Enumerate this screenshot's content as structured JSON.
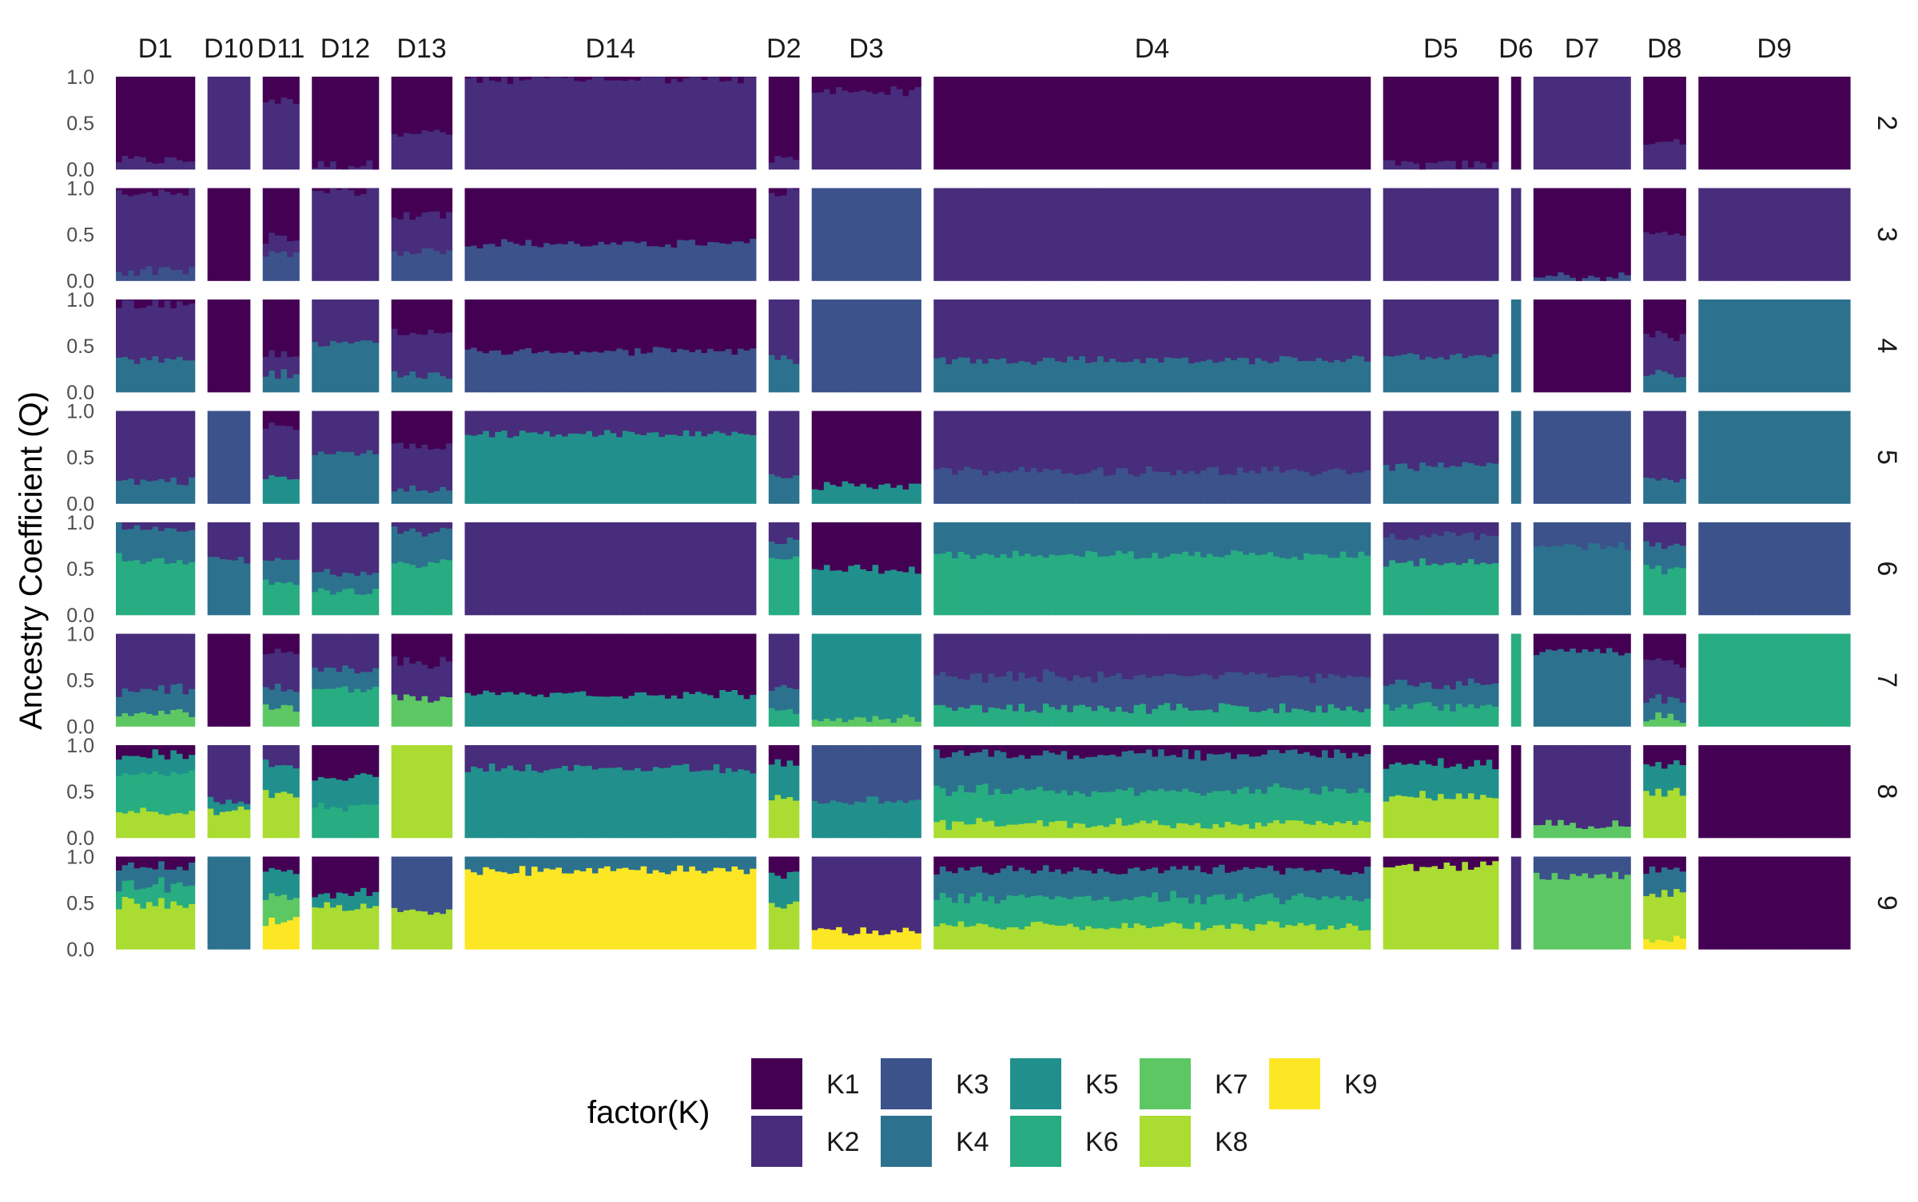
{
  "chart_data": {
    "type": "stacked-bar-facet-grid",
    "y_axis": {
      "label": "Ancestry Coefficient (Q)",
      "ticks": [
        "0.0",
        "0.5",
        "1.0"
      ],
      "range": [
        0,
        1
      ]
    },
    "column_facets": [
      "D1",
      "D10",
      "D11",
      "D12",
      "D13",
      "D14",
      "D2",
      "D3",
      "D4",
      "D5",
      "D6",
      "D7",
      "D8",
      "D9"
    ],
    "column_facet_sizes": [
      13,
      7,
      6,
      11,
      10,
      48,
      5,
      18,
      72,
      19,
      1,
      16,
      7,
      25
    ],
    "row_facets": [
      "2",
      "3",
      "4",
      "5",
      "6",
      "7",
      "8",
      "9"
    ],
    "legend": {
      "title": "factor(K)",
      "entries": [
        {
          "label": "K1",
          "color": "#440154"
        },
        {
          "label": "K2",
          "color": "#472D7B"
        },
        {
          "label": "K3",
          "color": "#3B528B"
        },
        {
          "label": "K4",
          "color": "#2C728E"
        },
        {
          "label": "K5",
          "color": "#21908C"
        },
        {
          "label": "K6",
          "color": "#27AD81"
        },
        {
          "label": "K7",
          "color": "#5DC863"
        },
        {
          "label": "K8",
          "color": "#AADC32"
        },
        {
          "label": "K9",
          "color": "#FDE725"
        }
      ]
    },
    "dominant_proportions": {
      "2": {
        "D1": {
          "K1": 0.9,
          "K2": 0.1
        },
        "D10": {
          "K2": 1.0
        },
        "D11": {
          "K1": 0.25,
          "K2": 0.75
        },
        "D12": {
          "K1": 0.95,
          "K2": 0.05
        },
        "D13": {
          "K1": 0.6,
          "K2": 0.4
        },
        "D14": {
          "K2": 0.98,
          "K1": 0.02
        },
        "D2": {
          "K1": 0.9,
          "K2": 0.1
        },
        "D3": {
          "K2": 0.85,
          "K1": 0.15
        },
        "D4": {
          "K1": 1.0
        },
        "D5": {
          "K1": 0.95,
          "K2": 0.05
        },
        "D6": {
          "K1": 1.0
        },
        "D7": {
          "K2": 1.0
        },
        "D8": {
          "K1": 0.7,
          "K2": 0.3
        },
        "D9": {
          "K1": 1.0
        }
      },
      "3": {
        "D1": {
          "K1": 0.05,
          "K2": 0.85,
          "K3": 0.1
        },
        "D10": {
          "K1": 1.0
        },
        "D11": {
          "K1": 0.55,
          "K2": 0.15,
          "K3": 0.3
        },
        "D12": {
          "K2": 0.97,
          "K1": 0.03
        },
        "D13": {
          "K1": 0.3,
          "K2": 0.4,
          "K3": 0.3
        },
        "D14": {
          "K1": 0.6,
          "K3": 0.4
        },
        "D2": {
          "K2": 0.95,
          "K1": 0.05
        },
        "D3": {
          "K3": 1.0
        },
        "D4": {
          "K2": 1.0
        },
        "D5": {
          "K2": 1.0
        },
        "D6": {
          "K2": 1.0
        },
        "D7": {
          "K1": 0.95,
          "K3": 0.05
        },
        "D8": {
          "K1": 0.5,
          "K2": 0.5
        },
        "D9": {
          "K2": 1.0
        }
      },
      "4": {
        "D1": {
          "K1": 0.05,
          "K2": 0.6,
          "K4": 0.35
        },
        "D10": {
          "K1": 1.0
        },
        "D11": {
          "K1": 0.6,
          "K2": 0.2,
          "K4": 0.2
        },
        "D12": {
          "K2": 0.45,
          "K4": 0.55
        },
        "D13": {
          "K1": 0.35,
          "K2": 0.45,
          "K4": 0.2
        },
        "D14": {
          "K1": 0.55,
          "K3": 0.45
        },
        "D2": {
          "K2": 0.65,
          "K4": 0.35
        },
        "D3": {
          "K3": 1.0
        },
        "D4": {
          "K2": 0.65,
          "K4": 0.35
        },
        "D5": {
          "K2": 0.6,
          "K4": 0.4
        },
        "D6": {
          "K4": 1.0
        },
        "D7": {
          "K1": 1.0
        },
        "D8": {
          "K1": 0.4,
          "K2": 0.4,
          "K4": 0.2
        },
        "D9": {
          "K4": 1.0
        }
      },
      "5": {
        "D1": {
          "K2": 0.75,
          "K4": 0.25
        },
        "D10": {
          "K3": 1.0
        },
        "D11": {
          "K1": 0.15,
          "K2": 0.55,
          "K5": 0.3
        },
        "D12": {
          "K2": 0.45,
          "K4": 0.55
        },
        "D13": {
          "K1": 0.4,
          "K2": 0.45,
          "K4": 0.15
        },
        "D14": {
          "K5": 0.75,
          "K2": 0.25
        },
        "D2": {
          "K2": 0.7,
          "K4": 0.3
        },
        "D3": {
          "K1": 0.8,
          "K5": 0.2
        },
        "D4": {
          "K2": 0.65,
          "K3": 0.35
        },
        "D5": {
          "K2": 0.6,
          "K4": 0.4
        },
        "D6": {
          "K4": 1.0
        },
        "D7": {
          "K3": 1.0
        },
        "D8": {
          "K2": 0.75,
          "K4": 0.25
        },
        "D9": {
          "K4": 1.0
        }
      },
      "6": {
        "D1": {
          "K2": 0.05,
          "K4": 0.35,
          "K6": 0.6
        },
        "D10": {
          "K2": 0.4,
          "K4": 0.6
        },
        "D11": {
          "K2": 0.4,
          "K4": 0.25,
          "K6": 0.35
        },
        "D12": {
          "K2": 0.55,
          "K4": 0.2,
          "K6": 0.25
        },
        "D13": {
          "K2": 0.1,
          "K4": 0.35,
          "K6": 0.55
        },
        "D14": {
          "K2": 1.0
        },
        "D2": {
          "K2": 0.2,
          "K4": 0.2,
          "K6": 0.6
        },
        "D3": {
          "K1": 0.5,
          "K5": 0.5
        },
        "D4": {
          "K4": 0.35,
          "K6": 0.65
        },
        "D5": {
          "K2": 0.15,
          "K3": 0.3,
          "K6": 0.55
        },
        "D6": {
          "K3": 1.0
        },
        "D7": {
          "K3": 0.25,
          "K4": 0.75
        },
        "D8": {
          "K2": 0.25,
          "K4": 0.25,
          "K6": 0.5
        },
        "D9": {
          "K3": 1.0
        }
      },
      "7": {
        "D1": {
          "K2": 0.6,
          "K4": 0.25,
          "K7": 0.15
        },
        "D10": {
          "K1": 1.0
        },
        "D11": {
          "K1": 0.2,
          "K2": 0.4,
          "K4": 0.2,
          "K7": 0.2
        },
        "D12": {
          "K2": 0.4,
          "K4": 0.2,
          "K6": 0.4
        },
        "D13": {
          "K1": 0.3,
          "K2": 0.4,
          "K7": 0.3
        },
        "D14": {
          "K1": 0.65,
          "K5": 0.35
        },
        "D2": {
          "K2": 0.6,
          "K4": 0.25,
          "K6": 0.15
        },
        "D3": {
          "K5": 0.9,
          "K7": 0.1
        },
        "D4": {
          "K2": 0.45,
          "K3": 0.35,
          "K6": 0.2
        },
        "D5": {
          "K2": 0.55,
          "K4": 0.25,
          "K6": 0.2
        },
        "D6": {
          "K6": 1.0
        },
        "D7": {
          "K1": 0.2,
          "K4": 0.8
        },
        "D8": {
          "K1": 0.3,
          "K2": 0.4,
          "K4": 0.2,
          "K7": 0.1
        },
        "D9": {
          "K6": 1.0
        }
      },
      "8": {
        "D1": {
          "K1": 0.1,
          "K5": 0.2,
          "K6": 0.4,
          "K8": 0.3
        },
        "D10": {
          "K2": 0.6,
          "K5": 0.1,
          "K8": 0.3
        },
        "D11": {
          "K2": 0.2,
          "K5": 0.3,
          "K8": 0.5
        },
        "D12": {
          "K1": 0.35,
          "K5": 0.3,
          "K6": 0.35
        },
        "D13": {
          "K8": 1.0
        },
        "D14": {
          "K5": 0.75,
          "K2": 0.25
        },
        "D2": {
          "K1": 0.2,
          "K5": 0.4,
          "K8": 0.4
        },
        "D3": {
          "K5": 0.4,
          "K3": 0.6
        },
        "D4": {
          "K1": 0.1,
          "K4": 0.4,
          "K6": 0.35,
          "K8": 0.15
        },
        "D5": {
          "K1": 0.2,
          "K5": 0.35,
          "K8": 0.45
        },
        "D6": {
          "K1": 1.0
        },
        "D7": {
          "K2": 0.85,
          "K7": 0.15
        },
        "D8": {
          "K1": 0.2,
          "K5": 0.3,
          "K8": 0.5
        },
        "D9": {
          "K1": 1.0
        }
      },
      "9": {
        "D1": {
          "K1": 0.1,
          "K4": 0.2,
          "K6": 0.2,
          "K8": 0.5
        },
        "D10": {
          "K4": 1.0
        },
        "D11": {
          "K1": 0.15,
          "K5": 0.3,
          "K7": 0.25,
          "K9": 0.3
        },
        "D12": {
          "K1": 0.4,
          "K5": 0.15,
          "K8": 0.45
        },
        "D13": {
          "K3": 0.6,
          "K8": 0.4
        },
        "D14": {
          "K9": 0.85,
          "K4": 0.15
        },
        "D2": {
          "K1": 0.2,
          "K5": 0.3,
          "K8": 0.5
        },
        "D3": {
          "K2": 0.8,
          "K9": 0.2
        },
        "D4": {
          "K1": 0.15,
          "K4": 0.3,
          "K6": 0.3,
          "K8": 0.25
        },
        "D5": {
          "K1": 0.1,
          "K8": 0.9
        },
        "D6": {
          "K2": 1.0
        },
        "D7": {
          "K3": 0.2,
          "K7": 0.8
        },
        "D8": {
          "K1": 0.15,
          "K4": 0.25,
          "K8": 0.5,
          "K9": 0.1
        },
        "D9": {
          "K1": 1.0
        }
      }
    }
  }
}
